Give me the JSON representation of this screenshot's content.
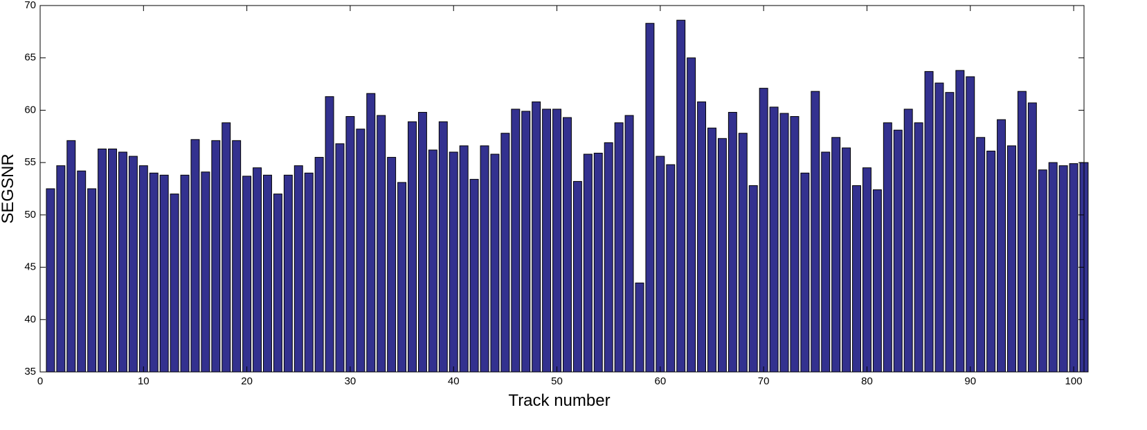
{
  "chart_data": {
    "type": "bar",
    "title": "",
    "xlabel": "Track number",
    "ylabel": "SEGSNR",
    "xlim": [
      0,
      101
    ],
    "ylim": [
      35,
      70
    ],
    "xticks": [
      0,
      10,
      20,
      30,
      40,
      50,
      60,
      70,
      80,
      90,
      100
    ],
    "yticks": [
      35,
      40,
      45,
      50,
      55,
      60,
      65,
      70
    ],
    "bar_color": "#33318f",
    "edge_color": "#000000",
    "grid": false,
    "legend": null,
    "x": [
      1,
      2,
      3,
      4,
      5,
      6,
      7,
      8,
      9,
      10,
      11,
      12,
      13,
      14,
      15,
      16,
      17,
      18,
      19,
      20,
      21,
      22,
      23,
      24,
      25,
      26,
      27,
      28,
      29,
      30,
      31,
      32,
      33,
      34,
      35,
      36,
      37,
      38,
      39,
      40,
      41,
      42,
      43,
      44,
      45,
      46,
      47,
      48,
      49,
      50,
      51,
      52,
      53,
      54,
      55,
      56,
      57,
      58,
      59,
      60,
      61,
      62,
      63,
      64,
      65,
      66,
      67,
      68,
      69,
      70,
      71,
      72,
      73,
      74,
      75,
      76,
      77,
      78,
      79,
      80,
      81,
      82,
      83,
      84,
      85,
      86,
      87,
      88,
      89,
      90,
      91,
      92,
      93,
      94,
      95,
      96,
      97,
      98,
      99,
      100,
      101
    ],
    "values": [
      52.5,
      54.7,
      57.1,
      54.2,
      52.5,
      56.3,
      56.3,
      56.0,
      55.6,
      54.7,
      54.0,
      53.8,
      52.0,
      53.8,
      57.2,
      54.1,
      57.1,
      58.8,
      57.1,
      53.7,
      54.5,
      53.8,
      52.0,
      53.8,
      54.7,
      54.0,
      55.5,
      61.3,
      56.8,
      59.4,
      58.2,
      61.6,
      59.5,
      55.5,
      53.1,
      58.9,
      59.8,
      56.2,
      58.9,
      56.0,
      56.6,
      53.4,
      56.6,
      55.8,
      57.8,
      60.1,
      59.9,
      60.8,
      60.1,
      60.1,
      59.3,
      53.2,
      55.8,
      55.9,
      56.9,
      58.8,
      59.5,
      43.5,
      68.3,
      55.6,
      54.8,
      68.6,
      65.0,
      60.8,
      58.3,
      57.3,
      59.8,
      57.8,
      52.8,
      62.1,
      60.3,
      59.7,
      59.4,
      54.0,
      61.8,
      56.0,
      57.4,
      56.4,
      52.8,
      54.5,
      52.4,
      58.8,
      58.1,
      60.1,
      58.8,
      63.7,
      62.6,
      61.7,
      63.8,
      63.2,
      57.4,
      56.1,
      59.1,
      56.6,
      61.8,
      60.7,
      54.3,
      55.0,
      54.7,
      54.9,
      55.0
    ]
  }
}
